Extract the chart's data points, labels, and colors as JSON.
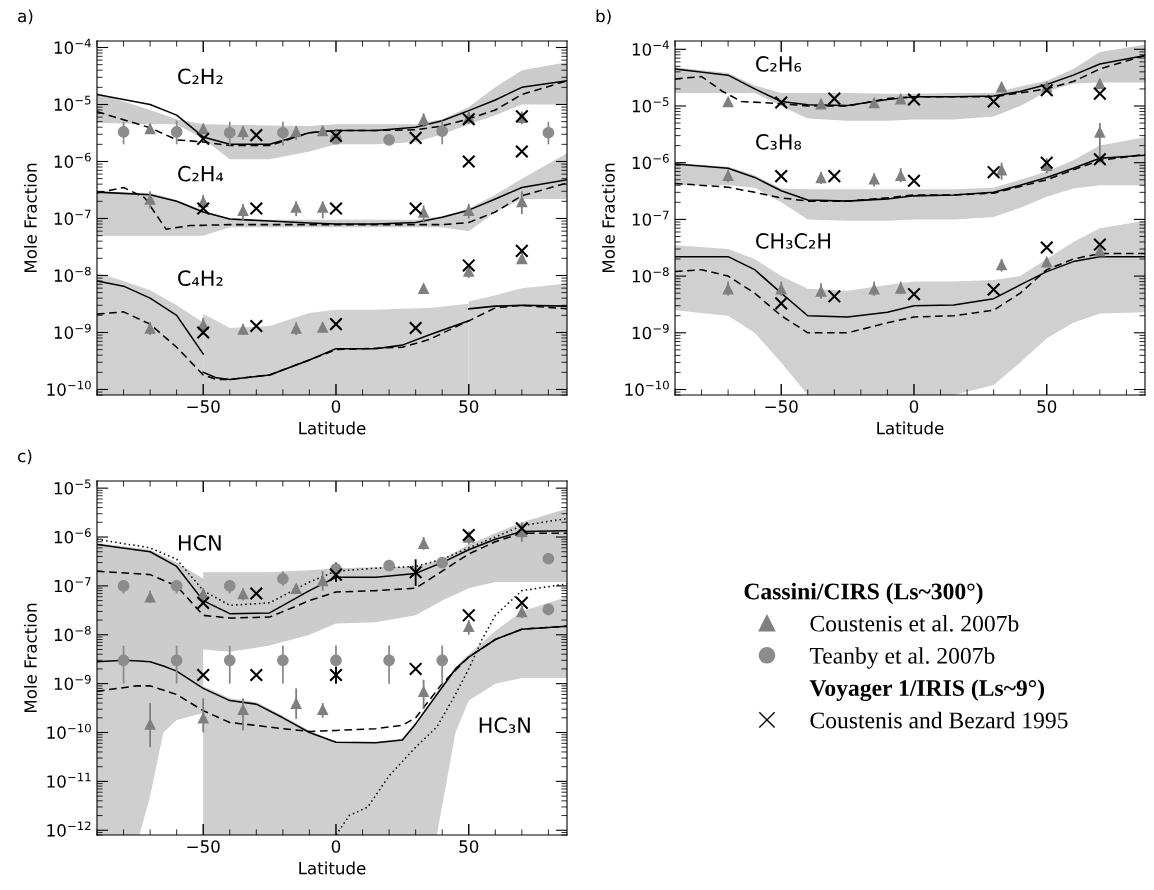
{
  "chart_data": [
    {
      "type": "line",
      "title": "a)",
      "xlabel": "Latitude",
      "ylabel": "Mole Fraction",
      "log": "y",
      "xlim": [
        -90,
        87
      ],
      "ylim": [
        8e-11,
        0.00013
      ],
      "xticks": [
        -50,
        0,
        50
      ],
      "yticks": [
        {
          "value": 1e-10,
          "label": "10$^{−10}$"
        },
        {
          "value": 1e-09,
          "label": "10$^{−9}$"
        },
        {
          "value": 1e-08,
          "label": "10$^{−8}$"
        },
        {
          "value": 1e-07,
          "label": "10$^{−7}$"
        },
        {
          "value": 1e-06,
          "label": "10$^{−6}$"
        },
        {
          "value": 1e-05,
          "label": "10$^{−5}$"
        },
        {
          "value": 0.0001,
          "label": "10$^{−4}$"
        }
      ],
      "series": [
        {
          "type": "line",
          "line_style": "solid",
          "color": "#000000",
          "x": [
            -90,
            -70,
            -60,
            -50,
            -40,
            -25,
            -10,
            0,
            15,
            30,
            40,
            50,
            60,
            70,
            87
          ],
          "name": "C₂H₂",
          "values": [
            1.5e-05,
            1e-05,
            6.5e-06,
            2.7e-06,
            2e-06,
            2e-06,
            3.2e-06,
            3.5e-06,
            3.5e-06,
            4e-06,
            5.2e-06,
            7.8e-06,
            1.2e-05,
            2e-05,
            2.6e-05
          ],
          "lower": [
            4.8e-06,
            4.5e-06,
            4.5e-06,
            2.5e-06,
            1.1e-06,
            1.1e-06,
            1.5e-06,
            2e-06,
            2e-06,
            2.2e-06,
            3e-06,
            4.5e-06,
            6.5e-06,
            1e-05,
            1e-05
          ],
          "upper": [
            1.6e-05,
            8e-06,
            5.5e-06,
            4.5e-06,
            4.4e-06,
            4.3e-06,
            4.2e-06,
            4.5e-06,
            4.5e-06,
            4.5e-06,
            5.5e-06,
            9e-06,
            2e-05,
            4e-05,
            5.5e-05
          ]
        },
        {
          "type": "line",
          "line_style": "dashed",
          "color": "#000000",
          "x": [
            -90,
            -70,
            -60,
            -50,
            -40,
            -25,
            -10,
            0,
            15,
            30,
            40,
            50,
            60,
            70,
            87
          ],
          "values": [
            7.5e-06,
            3.9e-06,
            2.4e-06,
            2.2e-06,
            1.9e-06,
            1.9e-06,
            3.2e-06,
            3.5e-06,
            3.5e-06,
            3.6e-06,
            4.2e-06,
            5.6e-06,
            8e-06,
            1.5e-05,
            2.6e-05
          ]
        },
        {
          "type": "line",
          "line_style": "solid",
          "color": "#000000",
          "x": [
            -90,
            -70,
            -60,
            -50,
            -40,
            -25,
            -10,
            0,
            15,
            30,
            40,
            50,
            60,
            70,
            87
          ],
          "name": "C₂H₄",
          "values": [
            2.9e-07,
            2.6e-07,
            2e-07,
            1.3e-07,
            9.8e-08,
            9e-08,
            8.3e-08,
            8e-08,
            8e-08,
            8.5e-08,
            1.05e-07,
            1.4e-07,
            2.2e-07,
            3.5e-07,
            4.8e-07
          ],
          "lower": [
            5e-08,
            5e-08,
            5e-08,
            5e-08,
            7e-08,
            7e-08,
            7e-08,
            7e-08,
            7e-08,
            7e-08,
            7e-08,
            6e-08,
            1.3e-07,
            2.2e-07,
            2.2e-07
          ],
          "upper": [
            3e-07,
            2.8e-07,
            2.1e-07,
            1.4e-07,
            1e-07,
            9.5e-08,
            9.5e-08,
            9.5e-08,
            9.5e-08,
            9.5e-08,
            1.1e-07,
            1.5e-07,
            2.6e-07,
            5e-07,
            1.4e-06
          ]
        },
        {
          "type": "line",
          "line_style": "dashed",
          "color": "#000000",
          "x": [
            -90,
            -80,
            -72,
            -64,
            -55,
            -40,
            -10,
            15,
            40,
            50,
            60,
            70,
            87
          ],
          "values": [
            2.8e-07,
            3.5e-07,
            2.3e-07,
            6.5e-08,
            7.5e-08,
            7.8e-08,
            7.8e-08,
            7.8e-08,
            7.8e-08,
            8.5e-08,
            1.3e-07,
            2.5e-07,
            4.2e-07
          ]
        },
        {
          "type": "line",
          "line_style": "solid",
          "color": "#000000",
          "name": "C₄H₂",
          "x": [
            -90,
            -80,
            -70,
            -60,
            -50
          ],
          "values": [
            8e-09,
            6.5e-09,
            4e-09,
            2e-09,
            4.2e-10
          ],
          "lower": [
            8e-11,
            8e-11,
            8e-11,
            8e-11,
            8e-11
          ],
          "upper": [
            1.1e-08,
            8e-09,
            5.5e-09,
            3e-09,
            1.5e-09
          ]
        },
        {
          "type": "line",
          "line_style": "solid",
          "color": "#000000",
          "x": [
            -50,
            -45,
            -40,
            -25,
            -10,
            0,
            15,
            25,
            35,
            50
          ],
          "values": [
            2e-10,
            1.6e-10,
            1.5e-10,
            1.8e-10,
            3.3e-10,
            5.2e-10,
            5.2e-10,
            6e-10,
            9e-10,
            1.6e-09
          ],
          "lower": [
            8e-11,
            8e-11,
            8e-11,
            8e-11,
            8e-11,
            8e-11,
            8e-11,
            8e-11,
            8e-11,
            8e-11
          ],
          "upper": [
            2.1e-09,
            1.6e-09,
            1.2e-09,
            1.3e-09,
            2.2e-09,
            2.5e-09,
            2.5e-09,
            2.6e-09,
            2.7e-09,
            3.2e-09
          ]
        },
        {
          "type": "line",
          "line_style": "solid",
          "color": "#000000",
          "x": [
            50,
            60,
            70,
            87
          ],
          "values": [
            2.6e-09,
            2.9e-09,
            3e-09,
            2.9e-09
          ],
          "lower": [
            8e-11,
            8e-11,
            8e-11,
            8e-11
          ],
          "upper": [
            3.5e-09,
            4.5e-09,
            6e-09,
            7.2e-09
          ]
        },
        {
          "type": "line",
          "line_style": "dashed",
          "color": "#000000",
          "x": [
            -90,
            -80,
            -70,
            -60,
            -50,
            -45,
            -40,
            -25,
            -10,
            0,
            15,
            25,
            35,
            50,
            60,
            70,
            87
          ],
          "values": [
            2.1e-09,
            2.3e-09,
            1.4e-09,
            5.5e-10,
            1.8e-10,
            1.5e-10,
            1.5e-10,
            1.8e-10,
            3.3e-10,
            5e-10,
            5.3e-10,
            5.5e-10,
            7.5e-10,
            1.6e-09,
            2.7e-09,
            3e-09,
            2.6e-09
          ]
        },
        {
          "type": "scatter",
          "marker": "triangle",
          "color": "#7f7f7f",
          "x": [
            -70,
            -50,
            -35,
            -15,
            -5,
            33,
            50,
            70,
            -70,
            -50,
            -35,
            -15,
            -5,
            33,
            50,
            70,
            -70,
            -50,
            -35,
            -15,
            -5,
            33,
            50,
            70
          ],
          "values": [
            3.8e-06,
            3.8e-06,
            3.4e-06,
            3.4e-06,
            3.5e-06,
            5.5e-06,
            6e-06,
            6e-06,
            2.2e-07,
            2e-07,
            1.4e-07,
            1.6e-07,
            1.6e-07,
            1.3e-07,
            1.4e-07,
            2e-07,
            1.2e-09,
            1.4e-09,
            1.15e-09,
            1.2e-09,
            1.25e-09,
            6e-09,
            1.2e-08,
            2e-08
          ],
          "errors": [
            [
              3.2e-06,
              4.6e-06
            ],
            [
              3e-06,
              4.6e-06
            ],
            [
              2.4e-06,
              4.2e-06
            ],
            [
              2.4e-06,
              4.2e-06
            ],
            [
              2.8e-06,
              4.2e-06
            ],
            [
              4e-06,
              7e-06
            ],
            [
              4.5e-06,
              7.5e-06
            ],
            [
              4.5e-06,
              7.5e-06
            ],
            [
              1.5e-07,
              3e-07
            ],
            [
              1.4e-07,
              2.6e-07
            ],
            [
              9e-08,
              1.8e-07
            ],
            [
              1.1e-07,
              2e-07
            ],
            [
              1e-07,
              2e-07
            ],
            [
              8.5e-08,
              1.7e-07
            ],
            [
              1e-07,
              1.8e-07
            ],
            [
              1.2e-07,
              3e-07
            ],
            [
              9e-10,
              1.5e-09
            ],
            [
              9e-10,
              1.8e-09
            ],
            [
              9e-10,
              1.4e-09
            ],
            [
              9e-10,
              1.5e-09
            ],
            [
              1e-09,
              1.5e-09
            ],
            null,
            [
              9e-09,
              1.5e-08
            ],
            [
              1.6e-08,
              2.5e-08
            ]
          ]
        },
        {
          "type": "scatter",
          "marker": "circle",
          "color": "#8c8c8c",
          "x": [
            -80,
            -60,
            -40,
            -20,
            0,
            20,
            40,
            80
          ],
          "values": [
            3.3e-06,
            3.3e-06,
            3.2e-06,
            3.2e-06,
            2.5e-06,
            2.4e-06,
            3.4e-06,
            3.2e-06
          ],
          "errors": [
            [
              2e-06,
              5e-06
            ],
            [
              2e-06,
              5.2e-06
            ],
            [
              1.9e-06,
              5e-06
            ],
            [
              1.9e-06,
              5e-06
            ],
            [
              2e-06,
              3.5e-06
            ],
            [
              2e-06,
              3e-06
            ],
            [
              2e-06,
              5.2e-06
            ],
            [
              2e-06,
              5e-06
            ]
          ]
        },
        {
          "type": "scatter",
          "marker": "cross",
          "color": "#000000",
          "x": [
            -50,
            -30,
            0,
            30,
            50,
            50,
            70,
            70,
            -50,
            -30,
            0,
            30,
            -50,
            -30,
            0,
            30,
            50,
            70
          ],
          "values": [
            2.5e-06,
            2.9e-06,
            2.8e-06,
            2.6e-06,
            5.5e-06,
            1e-06,
            6.2e-06,
            1.5e-06,
            1.5e-07,
            1.5e-07,
            1.5e-07,
            1.5e-07,
            1e-09,
            1.3e-09,
            1.4e-09,
            1.2e-09,
            1.5e-08,
            2.7e-08
          ]
        }
      ]
    },
    {
      "type": "line",
      "title": "b)",
      "xlabel": "Latitude",
      "ylabel": "Mole Fraction",
      "log": "y",
      "xlim": [
        -90,
        87
      ],
      "ylim": [
        8e-11,
        0.00014
      ],
      "xticks": [
        -50,
        0,
        50
      ],
      "yticks": [
        {
          "value": 1e-10,
          "label": "10$^{−10}$"
        },
        {
          "value": 1e-09,
          "label": "10$^{−9}$"
        },
        {
          "value": 1e-08,
          "label": "10$^{−8}$"
        },
        {
          "value": 1e-07,
          "label": "10$^{−7}$"
        },
        {
          "value": 1e-06,
          "label": "10$^{−6}$"
        },
        {
          "value": 1e-05,
          "label": "10$^{−5}$"
        },
        {
          "value": 0.0001,
          "label": "10$^{−4}$"
        }
      ],
      "series": [
        {
          "type": "line",
          "line_style": "solid",
          "color": "#000000",
          "x": [
            -90,
            -70,
            -60,
            -50,
            -40,
            -25,
            -10,
            0,
            15,
            30,
            40,
            50,
            60,
            70,
            87
          ],
          "name": "C₂H₆",
          "values": [
            4.5e-05,
            3.5e-05,
            2e-05,
            1.2e-05,
            1.05e-05,
            1.02e-05,
            1.3e-05,
            1.45e-05,
            1.45e-05,
            1.5e-05,
            1.8e-05,
            2.4e-05,
            3.5e-05,
            5.5e-05,
            7.8e-05
          ],
          "lower": [
            1.7e-05,
            1.7e-05,
            1.7e-05,
            1e-05,
            6e-06,
            5.5e-06,
            5.5e-06,
            5.8e-06,
            5.8e-06,
            6.5e-06,
            1e-05,
            1.8e-05,
            2.5e-05,
            2.6e-05,
            2.6e-05
          ],
          "upper": [
            4.8e-05,
            3.8e-05,
            2.3e-05,
            1.7e-05,
            1.7e-05,
            1.7e-05,
            1.65e-05,
            1.65e-05,
            1.7e-05,
            1.7e-05,
            2.2e-05,
            2.8e-05,
            4.5e-05,
            9e-05,
            0.00012
          ]
        },
        {
          "type": "line",
          "line_style": "dashed",
          "color": "#000000",
          "x": [
            -90,
            -80,
            -72,
            -65,
            -50,
            -40,
            -25,
            -10,
            0,
            30,
            50,
            60,
            70,
            87
          ],
          "values": [
            3e-05,
            3.3e-05,
            1.8e-05,
            1.2e-05,
            1.1e-05,
            1e-05,
            1e-05,
            1.35e-05,
            1.45e-05,
            1.45e-05,
            2e-05,
            2.7e-05,
            4.5e-05,
            7.8e-05
          ]
        },
        {
          "type": "line",
          "line_style": "solid",
          "color": "#000000",
          "x": [
            -90,
            -70,
            -60,
            -50,
            -40,
            -25,
            -10,
            0,
            15,
            30,
            40,
            50,
            60,
            70,
            87
          ],
          "name": "C₃H₈",
          "values": [
            9.5e-07,
            8e-07,
            5.5e-07,
            3.2e-07,
            2.2e-07,
            2.1e-07,
            2.3e-07,
            2.6e-07,
            2.7e-07,
            3e-07,
            4e-07,
            5.5e-07,
            8e-07,
            1.2e-06,
            1.35e-06
          ],
          "lower": [
            4e-07,
            4e-07,
            3.6e-07,
            2e-07,
            1e-07,
            9.5e-08,
            9.5e-08,
            1e-07,
            1e-07,
            1.1e-07,
            1.6e-07,
            2.5e-07,
            3.5e-07,
            4e-07,
            4e-07
          ],
          "upper": [
            1e-06,
            8.5e-07,
            6e-07,
            3.5e-07,
            3.4e-07,
            3.4e-07,
            3.4e-07,
            3.4e-07,
            3.4e-07,
            3.6e-07,
            5e-07,
            7e-07,
            1.1e-06,
            2e-06,
            2.8e-06
          ]
        },
        {
          "type": "line",
          "line_style": "dashed",
          "color": "#000000",
          "x": [
            -90,
            -70,
            -60,
            -50,
            -40,
            -25,
            -10,
            0,
            15,
            30,
            40,
            50,
            60,
            70,
            87
          ],
          "values": [
            4.3e-07,
            3.7e-07,
            3e-07,
            2.4e-07,
            2.1e-07,
            2.1e-07,
            2.4e-07,
            2.7e-07,
            2.7e-07,
            2.9e-07,
            3.8e-07,
            5e-07,
            7.5e-07,
            1.1e-06,
            1.4e-06
          ]
        },
        {
          "type": "line",
          "line_style": "solid",
          "color": "#000000",
          "x": [
            -90,
            -70,
            -60,
            -50,
            -40,
            -25,
            -10,
            0,
            15,
            30,
            40,
            50,
            60,
            70,
            87
          ],
          "name": "CH₃C₂H",
          "values": [
            2.2e-08,
            2.2e-08,
            1.3e-08,
            5e-09,
            2e-09,
            1.9e-09,
            2.3e-09,
            3e-09,
            3.1e-09,
            4e-09,
            7e-09,
            1.2e-08,
            1.8e-08,
            2.2e-08,
            2.2e-08
          ],
          "lower": [
            2.5e-09,
            2e-09,
            1e-09,
            3e-10,
            8e-11,
            8e-11,
            8e-11,
            8e-11,
            8e-11,
            1.2e-10,
            3e-10,
            8e-10,
            1.5e-09,
            2.2e-09,
            2.3e-09
          ],
          "upper": [
            3.5e-08,
            3e-08,
            2e-08,
            1e-08,
            6e-09,
            5.5e-09,
            7e-09,
            8e-09,
            8e-09,
            8.5e-09,
            1e-08,
            2e-08,
            4e-08,
            7e-08,
            9.5e-08
          ]
        },
        {
          "type": "line",
          "line_style": "dashed",
          "color": "#000000",
          "x": [
            -90,
            -80,
            -70,
            -60,
            -50,
            -40,
            -25,
            -10,
            0,
            15,
            30,
            40,
            50,
            60,
            70,
            87
          ],
          "values": [
            1.2e-08,
            1.3e-08,
            1e-08,
            5e-09,
            2e-09,
            1e-09,
            1e-09,
            1.5e-09,
            1.9e-09,
            2e-09,
            2.5e-09,
            5e-09,
            1.3e-08,
            2e-08,
            2.5e-08,
            2.5e-08
          ]
        },
        {
          "type": "scatter",
          "marker": "triangle",
          "color": "#7f7f7f",
          "x": [
            -70,
            -35,
            -15,
            -5,
            33,
            50,
            70,
            -70,
            -35,
            -15,
            -5,
            33,
            50,
            70,
            -70,
            -50,
            -35,
            -15,
            -5,
            33,
            50,
            70
          ],
          "values": [
            1.2e-05,
            1.1e-05,
            1.15e-05,
            1.35e-05,
            2.2e-05,
            2.2e-05,
            2.5e-05,
            6e-07,
            5.5e-07,
            5.2e-07,
            6e-07,
            7.5e-07,
            9e-07,
            3.5e-06,
            6e-09,
            6e-09,
            5.5e-09,
            6e-09,
            6.2e-09,
            1.6e-08,
            1.8e-08,
            2.8e-08
          ],
          "errors": [
            null,
            null,
            null,
            null,
            null,
            null,
            null,
            [
              4.5e-07,
              7.5e-07
            ],
            [
              4.2e-07,
              6.8e-07
            ],
            [
              3.8e-07,
              6.5e-07
            ],
            [
              4.5e-07,
              8e-07
            ],
            [
              5e-07,
              1e-06
            ],
            [
              6.5e-07,
              1.2e-06
            ],
            [
              1e-06,
              5e-06
            ],
            [
              4.5e-09,
              8e-09
            ],
            [
              4.5e-09,
              8e-09
            ],
            [
              4e-09,
              7.5e-09
            ],
            [
              4.5e-09,
              8e-09
            ],
            [
              4.8e-09,
              8e-09
            ],
            [
              1.2e-08,
              2e-08
            ],
            null,
            null
          ]
        },
        {
          "type": "scatter",
          "marker": "cross",
          "color": "#000000",
          "x": [
            -50,
            -30,
            0,
            30,
            50,
            70,
            -50,
            -30,
            0,
            30,
            50,
            70,
            -50,
            -30,
            0,
            30,
            50,
            70
          ],
          "values": [
            1.15e-05,
            1.35e-05,
            1.3e-05,
            1.2e-05,
            1.9e-05,
            1.65e-05,
            5.8e-07,
            5.8e-07,
            4.8e-07,
            6.8e-07,
            1e-06,
            1.15e-06,
            3.3e-09,
            4.4e-09,
            4.8e-09,
            5.8e-09,
            3.2e-08,
            3.6e-08
          ]
        }
      ]
    },
    {
      "type": "line",
      "title": "c)",
      "xlabel": "Latitude",
      "ylabel": "Mole Fraction",
      "log": "y",
      "legend": "right",
      "legend_title": "Cassini/CIRS (Ls~300°)",
      "xlim": [
        -90,
        87
      ],
      "ylim": [
        8e-13,
        1.4e-05
      ],
      "xticks": [
        -50,
        0,
        50
      ],
      "yticks": [
        {
          "value": 1e-12,
          "label": "10$^{−12}$"
        },
        {
          "value": 1e-11,
          "label": "10$^{−11}$"
        },
        {
          "value": 1e-10,
          "label": "10$^{−10}$"
        },
        {
          "value": 1e-09,
          "label": "10$^{−9}$"
        },
        {
          "value": 1e-08,
          "label": "10$^{−8}$"
        },
        {
          "value": 1e-07,
          "label": "10$^{−7}$"
        },
        {
          "value": 1e-06,
          "label": "10$^{−6}$"
        },
        {
          "value": 1e-05,
          "label": "10$^{−5}$"
        }
      ],
      "annotations": [
        "Voyager 1/IRIS (Ls~9°)"
      ],
      "series": [
        {
          "type": "line",
          "line_style": "solid",
          "color": "#000000",
          "x": [
            -90,
            -70,
            -60,
            -50,
            -50,
            -40,
            -25,
            -10,
            0,
            15,
            30,
            40,
            50,
            60,
            70,
            87
          ],
          "name": "HCN",
          "values": [
            7e-07,
            5e-07,
            2.5e-07,
            5e-08,
            5e-08,
            2.7e-08,
            2.8e-08,
            8e-08,
            1.5e-07,
            1.5e-07,
            1.8e-07,
            3e-07,
            5.5e-07,
            9e-07,
            1.3e-06,
            1.35e-06
          ],
          "lower": [
            1e-09,
            1e-09,
            1e-09,
            1e-09,
            5e-09,
            4.5e-09,
            6e-09,
            1e-08,
            1.7e-08,
            1.8e-08,
            2.5e-08,
            5e-08,
            9e-08,
            1.2e-07,
            1.2e-07,
            1.2e-07
          ],
          "upper": [
            7.5e-07,
            5.5e-07,
            3e-07,
            1.4e-07,
            1.9e-07,
            1.9e-07,
            1.9e-07,
            2.1e-07,
            2.3e-07,
            2.4e-07,
            2.5e-07,
            3.5e-07,
            7e-07,
            1.2e-06,
            2e-06,
            3.8e-06
          ]
        },
        {
          "type": "line",
          "line_style": "dashed",
          "color": "#000000",
          "x": [
            -90,
            -70,
            -60,
            -50,
            -40,
            -25,
            -10,
            0,
            15,
            30,
            40,
            50,
            60,
            70,
            87
          ],
          "values": [
            2e-07,
            1.7e-07,
            1e-07,
            2.5e-08,
            2.2e-08,
            2.3e-08,
            5e-08,
            7.5e-08,
            8e-08,
            9e-08,
            2e-07,
            4.5e-07,
            8e-07,
            1.2e-06,
            1.2e-06
          ]
        },
        {
          "type": "line",
          "line_style": "dotted",
          "color": "#000000",
          "x": [
            -90,
            -70,
            -60,
            -50,
            -40,
            -25,
            -10,
            0,
            15,
            30,
            40,
            50,
            60,
            70,
            87
          ],
          "values": [
            9e-07,
            6e-07,
            3.5e-07,
            8e-08,
            4e-08,
            4.5e-08,
            1.2e-07,
            2e-07,
            2.3e-07,
            2.5e-07,
            3.5e-07,
            6e-07,
            1e-06,
            1.7e-06,
            2.4e-06
          ]
        },
        {
          "type": "line",
          "line_style": "solid",
          "color": "#000000",
          "x": [
            -90,
            -80,
            -74,
            -70,
            -65,
            -60,
            -50,
            -50,
            -40,
            -30,
            -20,
            -10,
            0,
            15,
            25,
            30,
            38,
            45,
            50,
            60,
            70,
            87
          ],
          "name": "HC₃N",
          "values": [
            2.8e-09,
            3e-09,
            2.9e-09,
            2.8e-09,
            2.3e-09,
            1.8e-09,
            8e-10,
            8e-10,
            4.5e-10,
            3.8e-10,
            2e-10,
            1e-10,
            6.3e-11,
            6.2e-11,
            7e-11,
            1.5e-10,
            6e-10,
            2e-09,
            3.5e-09,
            8e-09,
            1.3e-08,
            1.5e-08
          ],
          "lower": [
            8e-13,
            8e-13,
            8e-13,
            5e-12,
            1e-10,
            1.8e-10,
            2.5e-10,
            8e-13,
            8e-13,
            8e-13,
            8e-13,
            8e-13,
            8e-13,
            8e-13,
            8e-13,
            8e-13,
            8e-13,
            1e-10,
            4.5e-10,
            1e-09,
            1.3e-09,
            1.3e-09
          ],
          "upper": [
            3e-09,
            3.2e-09,
            3.2e-09,
            3.1e-09,
            2.6e-09,
            2e-09,
            1e-09,
            9e-10,
            5e-10,
            4.2e-10,
            2.2e-10,
            1.1e-10,
            6.5e-11,
            6.5e-11,
            7.5e-11,
            1.6e-10,
            6.5e-10,
            2.2e-09,
            4e-09,
            1.2e-08,
            3e-08,
            6e-08
          ]
        },
        {
          "type": "line",
          "line_style": "dashed",
          "color": "#000000",
          "x": [
            -90,
            -75,
            -70,
            -60,
            -50,
            -40,
            -30,
            -20,
            -10,
            0,
            15,
            25,
            30,
            40,
            50,
            60,
            70,
            87
          ],
          "values": [
            7e-10,
            9e-10,
            9e-10,
            6e-10,
            2.8e-10,
            1.6e-10,
            1.4e-10,
            1.2e-10,
            1.05e-10,
            1.1e-10,
            1.2e-10,
            1.4e-10,
            2e-10,
            1e-09,
            3.5e-09,
            8e-09,
            1.3e-08,
            1.5e-08
          ]
        },
        {
          "type": "line",
          "line_style": "dotted",
          "color": "#000000",
          "x": [
            0,
            5,
            12,
            20,
            30,
            38,
            45,
            50,
            55,
            60,
            70,
            87
          ],
          "values": [
            8e-13,
            2e-12,
            3e-12,
            1.3e-11,
            5e-11,
            1.3e-10,
            6e-10,
            2e-09,
            8e-09,
            2.5e-08,
            8e-08,
            1.1e-07
          ]
        },
        {
          "type": "scatter",
          "name": "Coustenis et al. 2007b",
          "marker": "triangle",
          "color": "#7f7f7f",
          "x": [
            -70,
            -50,
            -35,
            -15,
            -5,
            33,
            50,
            70,
            -70,
            -50,
            -35,
            -15,
            -5,
            33,
            50,
            70
          ],
          "values": [
            6e-08,
            7e-08,
            7e-08,
            9e-08,
            1.3e-07,
            7.5e-07,
            1e-06,
            1.3e-06,
            1.5e-10,
            2e-10,
            3e-10,
            4e-10,
            3e-10,
            7e-10,
            1.5e-08,
            3e-08
          ],
          "errors": [
            [
              4.5e-08,
              8e-08
            ],
            [
              5e-08,
              9e-08
            ],
            [
              5e-08,
              9e-08
            ],
            null,
            [
              8e-08,
              2e-07
            ],
            [
              5.5e-07,
              1e-06
            ],
            [
              7e-07,
              1.3e-06
            ],
            [
              8e-07,
              2e-06
            ],
            [
              5e-11,
              4e-10
            ],
            [
              1e-10,
              5e-10
            ],
            [
              1.1e-10,
              5e-10
            ],
            [
              1.9e-10,
              8e-10
            ],
            [
              2e-10,
              4e-10
            ],
            [
              3e-10,
              1.2e-09
            ],
            [
              1e-08,
              2e-08
            ],
            [
              2.2e-08,
              4e-08
            ]
          ]
        },
        {
          "type": "scatter",
          "name": "Teanby et al. 2007b",
          "marker": "circle",
          "color": "#8c8c8c",
          "x": [
            -80,
            -60,
            -40,
            -20,
            0,
            20,
            40,
            80,
            -80,
            -60,
            -40,
            -20,
            0,
            20,
            40,
            80
          ],
          "values": [
            1e-07,
            1e-07,
            1e-07,
            1.4e-07,
            2.2e-07,
            2.6e-07,
            3e-07,
            3.6e-07,
            3e-09,
            3e-09,
            3e-09,
            3e-09,
            3e-09,
            3e-09,
            3e-09,
            3.3e-08
          ],
          "errors": [
            [
              7e-08,
              1.3e-07
            ],
            [
              7e-08,
              1.3e-07
            ],
            [
              7e-08,
              1.3e-07
            ],
            [
              1e-07,
              2e-07
            ],
            null,
            null,
            null,
            null,
            [
              1e-09,
              6e-09
            ],
            [
              1e-09,
              6e-09
            ],
            [
              1e-09,
              6e-09
            ],
            [
              1e-09,
              6e-09
            ],
            [
              1e-09,
              6e-09
            ],
            [
              1e-09,
              6e-09
            ],
            [
              1e-09,
              6e-09
            ],
            [
              2.5e-08,
              4e-08
            ]
          ]
        },
        {
          "type": "scatter",
          "name": "Coustenis and Bezard 1995",
          "marker": "cross",
          "color": "#000000",
          "x": [
            -50,
            -30,
            0,
            30,
            50,
            70,
            -50,
            -30,
            0,
            30,
            50,
            70
          ],
          "values": [
            4.5e-08,
            7e-08,
            1.7e-07,
            1.9e-07,
            1.1e-06,
            1.5e-06,
            1.5e-09,
            1.5e-09,
            1.5e-09,
            2e-09,
            2.5e-08,
            4.5e-08
          ],
          "errors": [
            null,
            null,
            [
              1.2e-07,
              3e-07
            ],
            [
              1e-07,
              3.5e-07
            ],
            null,
            null,
            null,
            null,
            [
              1e-09,
              2.2e-09
            ],
            null,
            null,
            null
          ]
        }
      ]
    }
  ]
}
